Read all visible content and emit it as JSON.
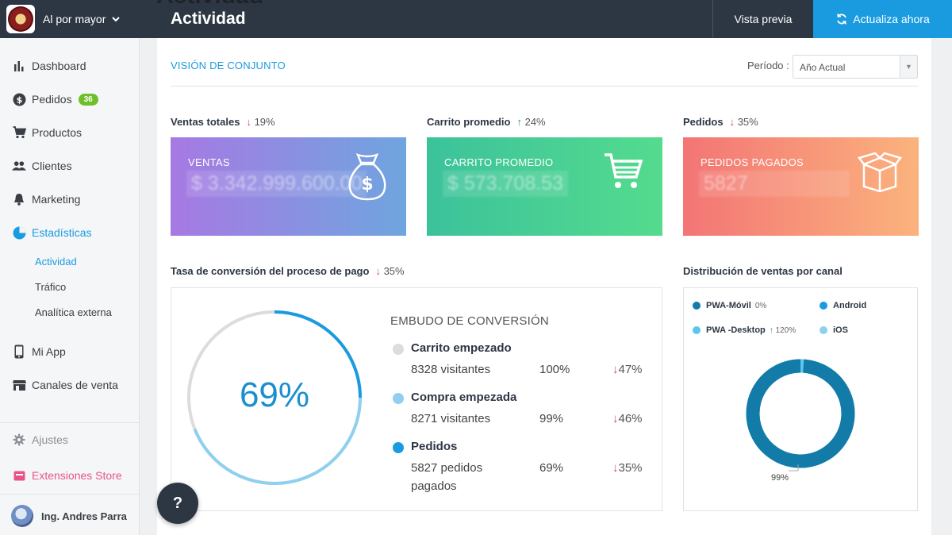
{
  "header": {
    "store_name": "Al por mayor",
    "page_title_ghost": "Actividad",
    "page_title": "Actividad",
    "preview_label": "Vista previa",
    "update_label": "Actualiza ahora"
  },
  "sidebar": {
    "items": [
      {
        "label": "Dashboard",
        "icon": "bar-chart-icon"
      },
      {
        "label": "Pedidos",
        "icon": "dollar-icon",
        "badge": "36"
      },
      {
        "label": "Productos",
        "icon": "cart-icon"
      },
      {
        "label": "Clientes",
        "icon": "users-icon"
      },
      {
        "label": "Marketing",
        "icon": "bell-icon"
      },
      {
        "label": "Estadísticas",
        "icon": "pie-chart-icon",
        "active": true
      }
    ],
    "subitems": [
      {
        "label": "Actividad",
        "active": true
      },
      {
        "label": "Tráfico"
      },
      {
        "label": "Analítica externa"
      }
    ],
    "items2": [
      {
        "label": "Mi App",
        "icon": "phone-icon"
      },
      {
        "label": "Canales de venta",
        "icon": "store-icon"
      }
    ],
    "settings_label": "Ajustes",
    "extensions_label": "Extensiones Store",
    "user_name": "Ing. Andres Parra"
  },
  "overview": {
    "title": "VISIÓN DE CONJUNTO",
    "period_label": "Período :",
    "period_value": "Año Actual"
  },
  "kpis": {
    "sales": {
      "label": "Ventas totales",
      "delta": "19%",
      "direction": "down",
      "card_title": "VENTAS",
      "value": "$ 3.342.999.600.00"
    },
    "cart": {
      "label": "Carrito promedio",
      "delta": "24%",
      "direction": "up",
      "card_title": "CARRITO PROMEDIO",
      "value": "$ 573.708.53"
    },
    "orders": {
      "label": "Pedidos",
      "delta": "35%",
      "direction": "down",
      "card_title": "PEDIDOS PAGADOS",
      "value": "5827"
    }
  },
  "conversion": {
    "label": "Tasa de conversión del proceso de pago",
    "delta": "35%",
    "percent": "69%",
    "percent_value": 0.69,
    "funnel_title": "EMBUDO DE CONVERSIÓN",
    "steps": [
      {
        "name": "Carrito empezado",
        "count": "8328 visitantes",
        "pct": "100%",
        "delta": "47%",
        "color": "#dcdcdc"
      },
      {
        "name": "Compra empezada",
        "count": "8271 visitantes",
        "pct": "99%",
        "delta": "46%",
        "color": "#8fd0ee"
      },
      {
        "name": "Pedidos",
        "count": "5827 pedidos pagados",
        "pct": "69%",
        "delta": "35%",
        "color": "#1a9be0"
      }
    ]
  },
  "channels": {
    "label": "Distribución de ventas por canal",
    "legend": [
      {
        "name": "PWA-Móvil",
        "value": "0%",
        "color": "#127ba8"
      },
      {
        "name": "Android",
        "value": "",
        "color": "#1a9be0"
      },
      {
        "name": "PWA -Desktop",
        "value": "120%",
        "direction": "up",
        "color": "#5cc6ee"
      },
      {
        "name": "iOS",
        "value": "",
        "color": "#8fd0ee"
      }
    ],
    "donut_share": 0.99,
    "donut_label": "99%"
  },
  "help_label": "?",
  "colors": {
    "accent": "#1a9be0",
    "topbar": "#2d3744",
    "badge": "#6fbf2d"
  }
}
